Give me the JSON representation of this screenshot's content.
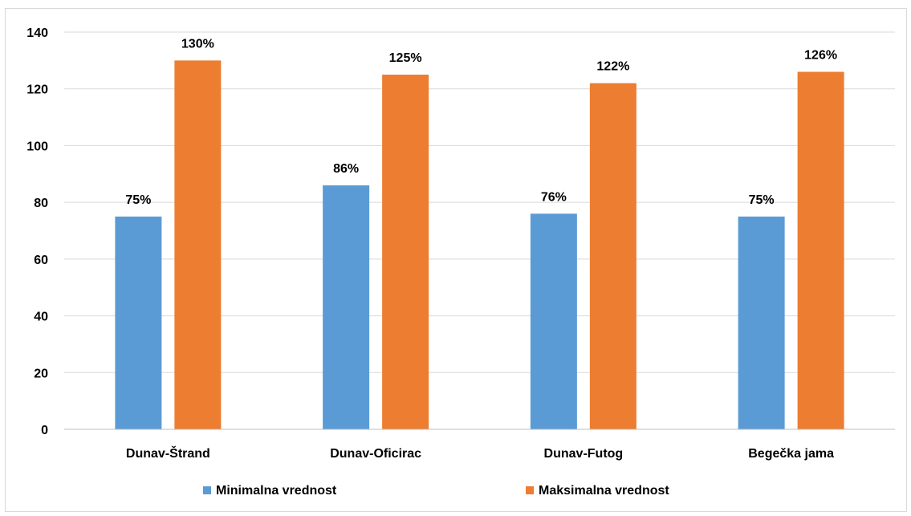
{
  "chart_data": {
    "type": "bar",
    "title": "",
    "xlabel": "",
    "ylabel": "",
    "categories": [
      "Dunav-Štrand",
      "Dunav-Oficirac",
      "Dunav-Futog",
      "Begečka jama"
    ],
    "series": [
      {
        "name": "Minimalna vrednost",
        "values": [
          75,
          86,
          76,
          75
        ],
        "labels": [
          "75%",
          "86%",
          "76%",
          "75%"
        ],
        "color": "#5b9bd5"
      },
      {
        "name": "Maksimalna vrednost",
        "values": [
          130,
          125,
          122,
          126
        ],
        "labels": [
          "130%",
          "125%",
          "122%",
          "126%"
        ],
        "color": "#ed7d31"
      }
    ],
    "ylim": [
      0,
      140
    ],
    "yticks": [
      0,
      20,
      40,
      60,
      80,
      100,
      120,
      140
    ],
    "grid": true,
    "legend_position": "bottom",
    "gridline_color": "#d9d9d9"
  }
}
